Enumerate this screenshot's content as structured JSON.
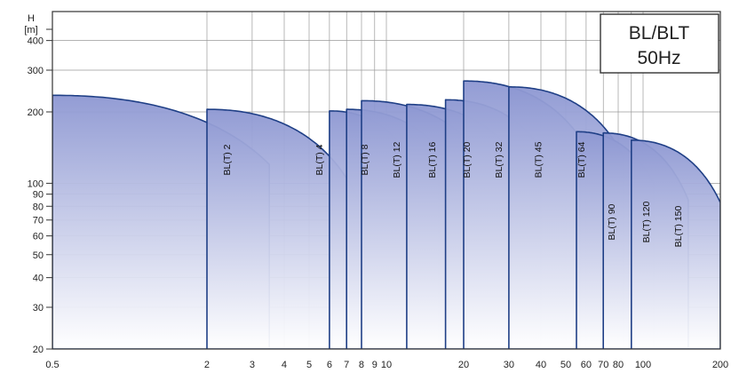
{
  "chart_data": {
    "type": "area",
    "title": "BL/BLT",
    "subtitle": "50Hz",
    "ylabel": "H",
    "yunit": "[m]",
    "xlabel": "",
    "x_scale": "log",
    "y_scale": "log",
    "xlim": [
      0.5,
      200
    ],
    "ylim": [
      20,
      530
    ],
    "x_ticks": [
      {
        "value": 0.5,
        "label": "0.5"
      },
      {
        "value": 2,
        "label": "2"
      },
      {
        "value": 3,
        "label": "3"
      },
      {
        "value": 4,
        "label": "4"
      },
      {
        "value": 5,
        "label": "5"
      },
      {
        "value": 6,
        "label": "6"
      },
      {
        "value": 7,
        "label": "7"
      },
      {
        "value": 8,
        "label": "8"
      },
      {
        "value": 9,
        "label": "9"
      },
      {
        "value": 10,
        "label": "10"
      },
      {
        "value": 20,
        "label": "20"
      },
      {
        "value": 30,
        "label": "30"
      },
      {
        "value": 40,
        "label": "40"
      },
      {
        "value": 50,
        "label": "50"
      },
      {
        "value": 60,
        "label": "60"
      },
      {
        "value": 70,
        "label": "70"
      },
      {
        "value": 80,
        "label": "80"
      },
      {
        "value": 100,
        "label": "100"
      },
      {
        "value": 200,
        "label": "200"
      }
    ],
    "x_grid": [
      0.5,
      2,
      3,
      4,
      5,
      6,
      7,
      8,
      9,
      10,
      20,
      30,
      40,
      50,
      60,
      70,
      80,
      90,
      100,
      200
    ],
    "y_ticks": [
      {
        "value": 20,
        "label": "20"
      },
      {
        "value": 30,
        "label": "30"
      },
      {
        "value": 40,
        "label": "40"
      },
      {
        "value": 50,
        "label": "50"
      },
      {
        "value": 60,
        "label": "60"
      },
      {
        "value": 70,
        "label": "70"
      },
      {
        "value": 80,
        "label": "80"
      },
      {
        "value": 90,
        "label": "90"
      },
      {
        "value": 100,
        "label": "100"
      },
      {
        "value": 200,
        "label": "200"
      },
      {
        "value": 300,
        "label": "300"
      },
      {
        "value": 400,
        "label": "400"
      }
    ],
    "series": [
      {
        "name": "BL(T) 2",
        "x_min": 0.5,
        "x_max": 3.5,
        "head_max": 235,
        "head_end": 120,
        "curve_end_q": 3.5
      },
      {
        "name": "BL(T) 4",
        "x_min": 2,
        "x_max": 8,
        "head_max": 205,
        "head_end": 80,
        "curve_end_q": 8
      },
      {
        "name": "BL(T) 8",
        "x_min": 6,
        "x_max": 12,
        "head_max": 202,
        "head_end": 135,
        "curve_end_q": 12
      },
      {
        "name": "BL(T) 12",
        "x_min": 7,
        "x_max": 16,
        "head_max": 205,
        "head_end": 140,
        "curve_end_q": 16
      },
      {
        "name": "BL(T) 16",
        "x_min": 8,
        "x_max": 22,
        "head_max": 223,
        "head_end": 142,
        "curve_end_q": 22
      },
      {
        "name": "BL(T) 20",
        "x_min": 12,
        "x_max": 30,
        "head_max": 215,
        "head_end": 140,
        "curve_end_q": 30
      },
      {
        "name": "BL(T) 32",
        "x_min": 17,
        "x_max": 40,
        "head_max": 225,
        "head_end": 140,
        "curve_end_q": 40
      },
      {
        "name": "BL(T) 45",
        "x_min": 20,
        "x_max": 57,
        "head_max": 270,
        "head_end": 155,
        "curve_end_q": 57
      },
      {
        "name": "BL(T) 64",
        "x_min": 30,
        "x_max": 84,
        "head_max": 255,
        "head_end": 130,
        "curve_end_q": 84
      },
      {
        "name": "BL(T) 90",
        "x_min": 55,
        "x_max": 110,
        "head_max": 165,
        "head_end": 100,
        "curve_end_q": 110
      },
      {
        "name": "BL(T) 120",
        "x_min": 70,
        "x_max": 150,
        "head_max": 163,
        "head_end": 85,
        "curve_end_q": 150
      },
      {
        "name": "BL(T) 150",
        "x_min": 90,
        "x_max": 200,
        "head_max": 152,
        "head_end": 83,
        "curve_end_q": 200
      }
    ],
    "grid": true,
    "legend": "top-right"
  },
  "colors": {
    "curve_stroke": "#1f3f86",
    "fill_top": "#8d97d2",
    "fill_bottom": "#ffffff",
    "grid": "#9a9a9a"
  }
}
